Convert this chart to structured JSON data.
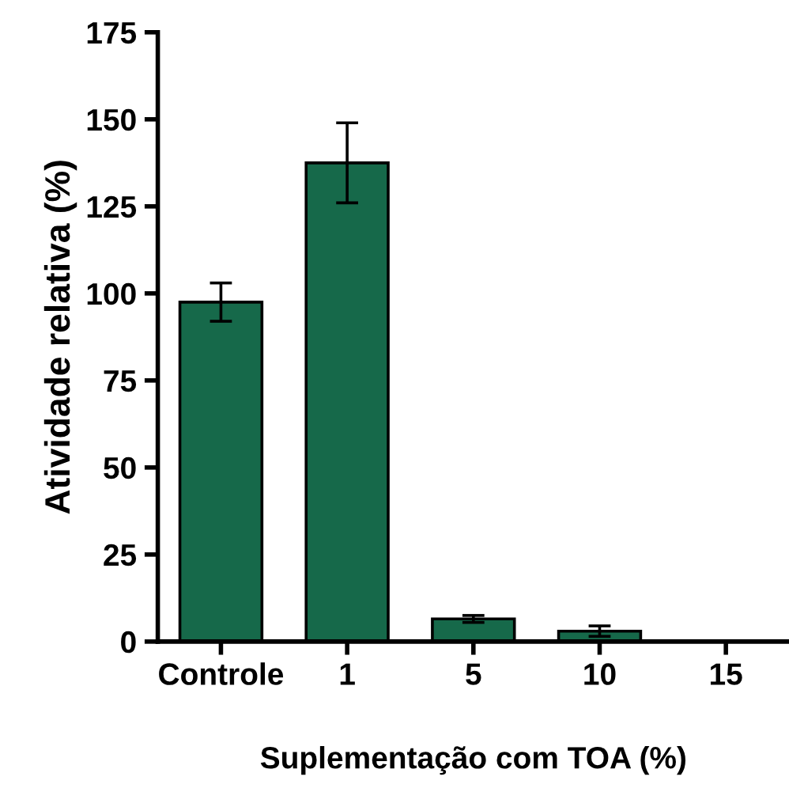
{
  "chart_data": {
    "type": "bar",
    "xlabel": "Suplementação com TOA (%)",
    "ylabel": "Atividade relativa (%)",
    "categories": [
      "Controle",
      "1",
      "5",
      "10",
      "15"
    ],
    "values": [
      97.5,
      137.5,
      6.5,
      3,
      null
    ],
    "errors": [
      5.5,
      11.5,
      1,
      1.5,
      null
    ],
    "color": "#16694a",
    "ylim": [
      0,
      175
    ],
    "yticks": [
      0,
      25,
      50,
      75,
      100,
      125,
      150,
      175
    ],
    "grid": false,
    "legend": false
  }
}
